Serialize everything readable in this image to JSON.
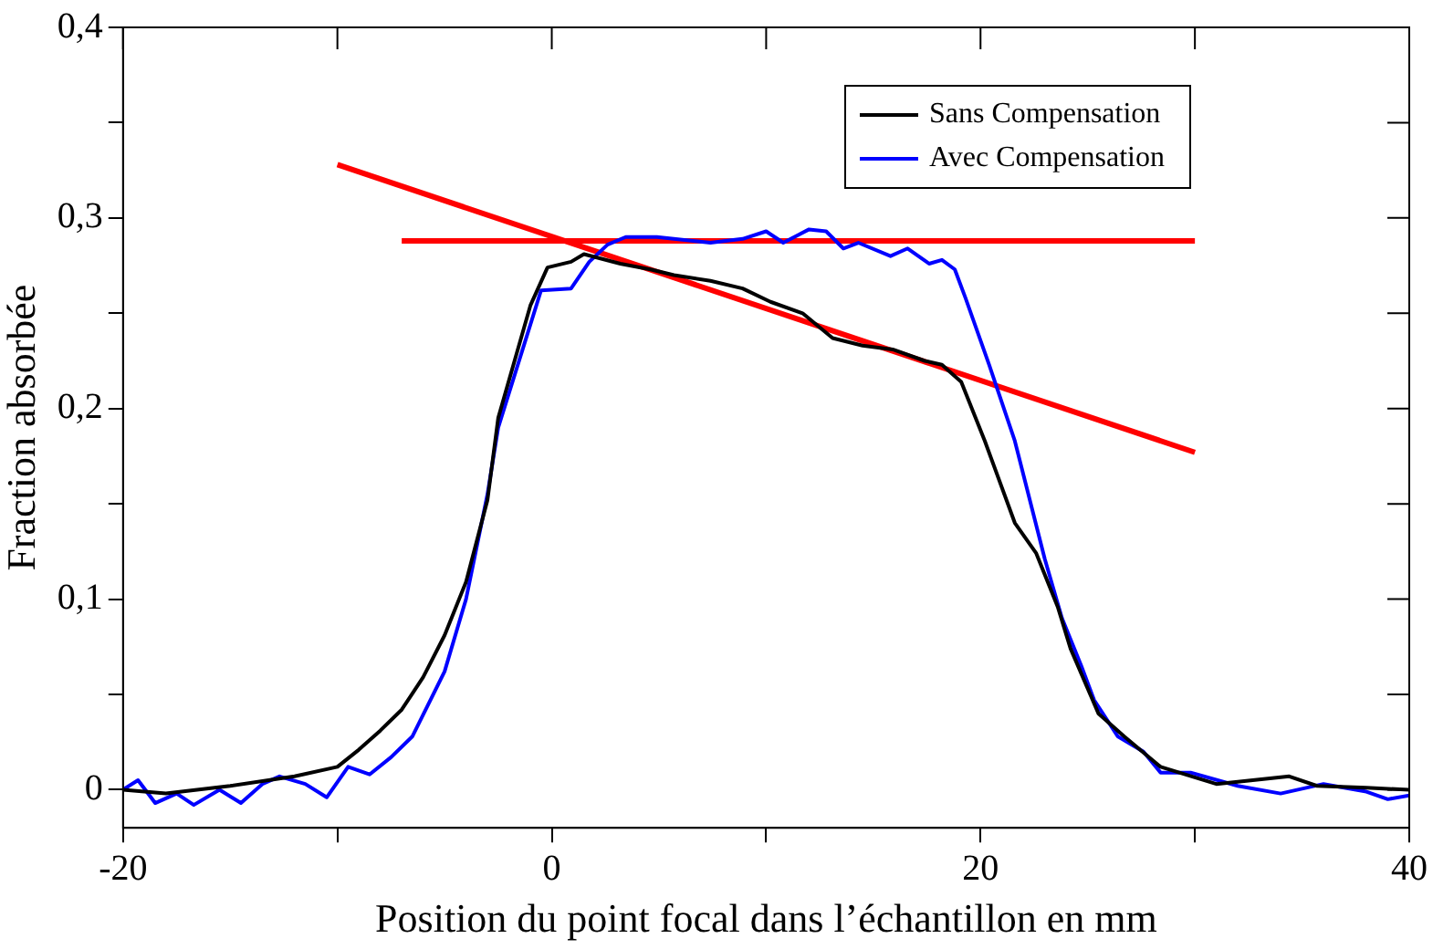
{
  "chart_data": {
    "type": "line",
    "xlabel": "Position du point focal dans l’échantillon en mm",
    "ylabel": "Fraction absorbée",
    "xlim": [
      -20,
      40
    ],
    "xticks": [
      -20,
      {
        "value": -10,
        "label": null
      },
      0,
      {
        "value": 10,
        "label": null
      },
      20,
      {
        "value": 30,
        "label": null
      },
      40
    ],
    "ylim": [
      -0.02,
      0.4
    ],
    "yticks": [
      0,
      {
        "value": 0.05,
        "label": null
      },
      {
        "value": 0.1,
        "label": "0,1"
      },
      {
        "value": 0.15,
        "label": null
      },
      {
        "value": 0.2,
        "label": "0,2"
      },
      {
        "value": 0.25,
        "label": null
      },
      {
        "value": 0.3,
        "label": "0,3"
      },
      {
        "value": 0.35,
        "label": null
      },
      {
        "value": 0.4,
        "label": "0,4"
      }
    ],
    "grid": false,
    "legend": "top right",
    "marker": "none",
    "line_style": "solid",
    "series": [
      {
        "name": "Sans Compensation",
        "color": "#000000",
        "x": [
          -20,
          -18,
          -15,
          -12,
          -10,
          -9,
          -8,
          -7,
          -6,
          -5,
          -4,
          -3,
          -2.5,
          -1,
          -0.2,
          0.9,
          1.5,
          3.2,
          4.6,
          5.7,
          7.4,
          8.9,
          10.2,
          11.7,
          13.1,
          14.5,
          15.9,
          17.4,
          18.2,
          19.1,
          20.2,
          21.6,
          22.6,
          23.6,
          24.2,
          25.5,
          26.7,
          28.4,
          31,
          34.4,
          35.7,
          38,
          40
        ],
        "values": [
          0,
          -0.002,
          0.002,
          0.007,
          0.012,
          0.021,
          0.031,
          0.042,
          0.059,
          0.081,
          0.109,
          0.152,
          0.195,
          0.254,
          0.274,
          0.277,
          0.281,
          0.276,
          0.273,
          0.27,
          0.267,
          0.263,
          0.256,
          0.25,
          0.237,
          0.233,
          0.231,
          0.225,
          0.223,
          0.214,
          0.183,
          0.14,
          0.124,
          0.096,
          0.074,
          0.04,
          0.028,
          0.012,
          0.003,
          0.007,
          0.002,
          0.001,
          0
        ]
      },
      {
        "name": "Avec Compensation",
        "color": "#0000ff",
        "x": [
          -20,
          -19.3,
          -18.5,
          -17.5,
          -16.7,
          -15.5,
          -14.5,
          -13.5,
          -12.7,
          -11.5,
          -10.5,
          -9.5,
          -8.5,
          -7.5,
          -6.5,
          -5,
          -4,
          -3,
          -2.5,
          -1,
          -0.5,
          0.9,
          1.75,
          2.6,
          3.45,
          4.9,
          7.4,
          8.9,
          10,
          10.8,
          12,
          12.8,
          13.6,
          14.3,
          15.8,
          16.6,
          17.6,
          18.2,
          18.8,
          19.3,
          20.4,
          21.6,
          23,
          23.8,
          24.7,
          25.3,
          26.4,
          27.6,
          28.4,
          29.8,
          32,
          34,
          36,
          38,
          39,
          40
        ],
        "values": [
          0,
          0.005,
          -0.007,
          -0.002,
          -0.008,
          0,
          -0.007,
          0.003,
          0.007,
          0.003,
          -0.004,
          0.012,
          0.008,
          0.017,
          0.028,
          0.062,
          0.1,
          0.155,
          0.19,
          0.244,
          0.262,
          0.263,
          0.277,
          0.286,
          0.29,
          0.29,
          0.287,
          0.289,
          0.293,
          0.287,
          0.294,
          0.293,
          0.284,
          0.287,
          0.28,
          0.284,
          0.276,
          0.278,
          0.273,
          0.258,
          0.223,
          0.183,
          0.121,
          0.09,
          0.065,
          0.047,
          0.028,
          0.02,
          0.009,
          0.009,
          0.002,
          -0.002,
          0.003,
          -0.001,
          -0.005,
          -0.003
        ]
      },
      {
        "type": "line",
        "color": "#ff0000",
        "x": [
          -10,
          30
        ],
        "values": [
          0.328,
          0.177
        ]
      },
      {
        "type": "line",
        "color": "#ff0000",
        "x": [
          -7,
          30
        ],
        "values": [
          0.288,
          0.288
        ]
      }
    ]
  }
}
